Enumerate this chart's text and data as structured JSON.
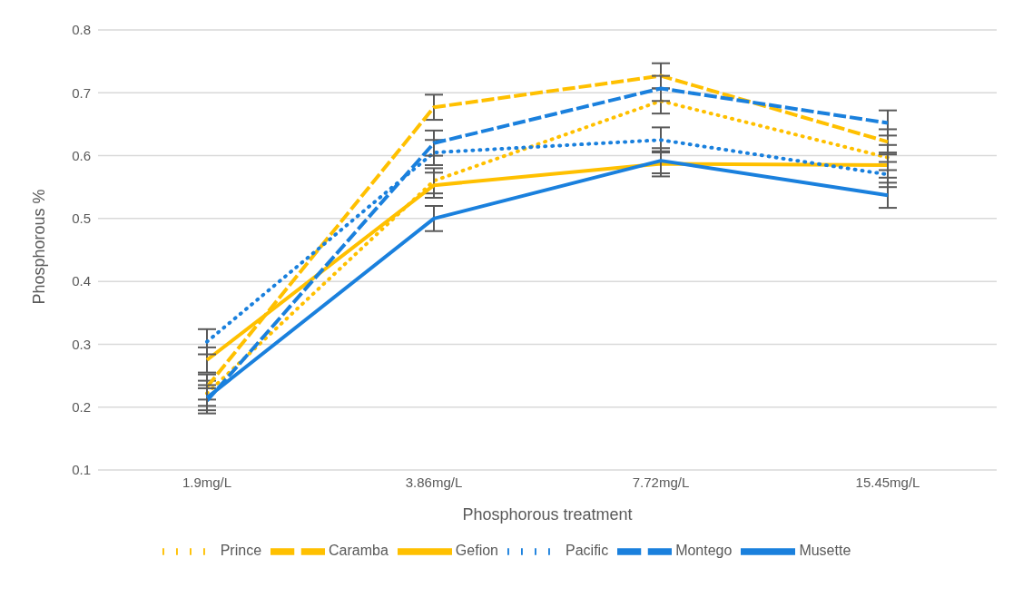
{
  "chart_data": {
    "type": "line",
    "xlabel": "Phosphorous treatment",
    "ylabel": "Phosphorous %",
    "categories": [
      "1.9mg/L",
      "3.86mg/L",
      "7.72mg/L",
      "15.45mg/L"
    ],
    "series": [
      {
        "name": "Prince",
        "color": "#ffc000",
        "line_style": "dotted",
        "values": [
          0.222,
          0.56,
          0.687,
          0.597
        ],
        "errors": [
          0.02,
          0.02,
          0.02,
          0.02
        ]
      },
      {
        "name": "Caramba",
        "color": "#ffc000",
        "line_style": "dashed",
        "values": [
          0.232,
          0.677,
          0.727,
          0.622
        ],
        "errors": [
          0.02,
          0.02,
          0.02,
          0.02
        ]
      },
      {
        "name": "Gefion",
        "color": "#ffc000",
        "line_style": "solid",
        "values": [
          0.275,
          0.553,
          0.587,
          0.585
        ],
        "errors": [
          0.02,
          0.02,
          0.02,
          0.02
        ]
      },
      {
        "name": "Pacific",
        "color": "#1a80dd",
        "line_style": "dotted",
        "values": [
          0.304,
          0.605,
          0.625,
          0.57
        ],
        "errors": [
          0.02,
          0.02,
          0.02,
          0.02
        ]
      },
      {
        "name": "Montego",
        "color": "#1a80dd",
        "line_style": "dashed",
        "values": [
          0.21,
          0.62,
          0.707,
          0.652
        ],
        "errors": [
          0.02,
          0.02,
          0.02,
          0.02
        ]
      },
      {
        "name": "Musette",
        "color": "#1a80dd",
        "line_style": "solid",
        "values": [
          0.215,
          0.5,
          0.592,
          0.537
        ],
        "errors": [
          0.02,
          0.02,
          0.02,
          0.02
        ]
      }
    ],
    "ylim": [
      0.1,
      0.8
    ],
    "yticks": [
      0.1,
      0.2,
      0.3,
      0.4,
      0.5,
      0.6,
      0.7,
      0.8
    ],
    "grid": "y",
    "legend": "bottom",
    "marker": "none"
  }
}
